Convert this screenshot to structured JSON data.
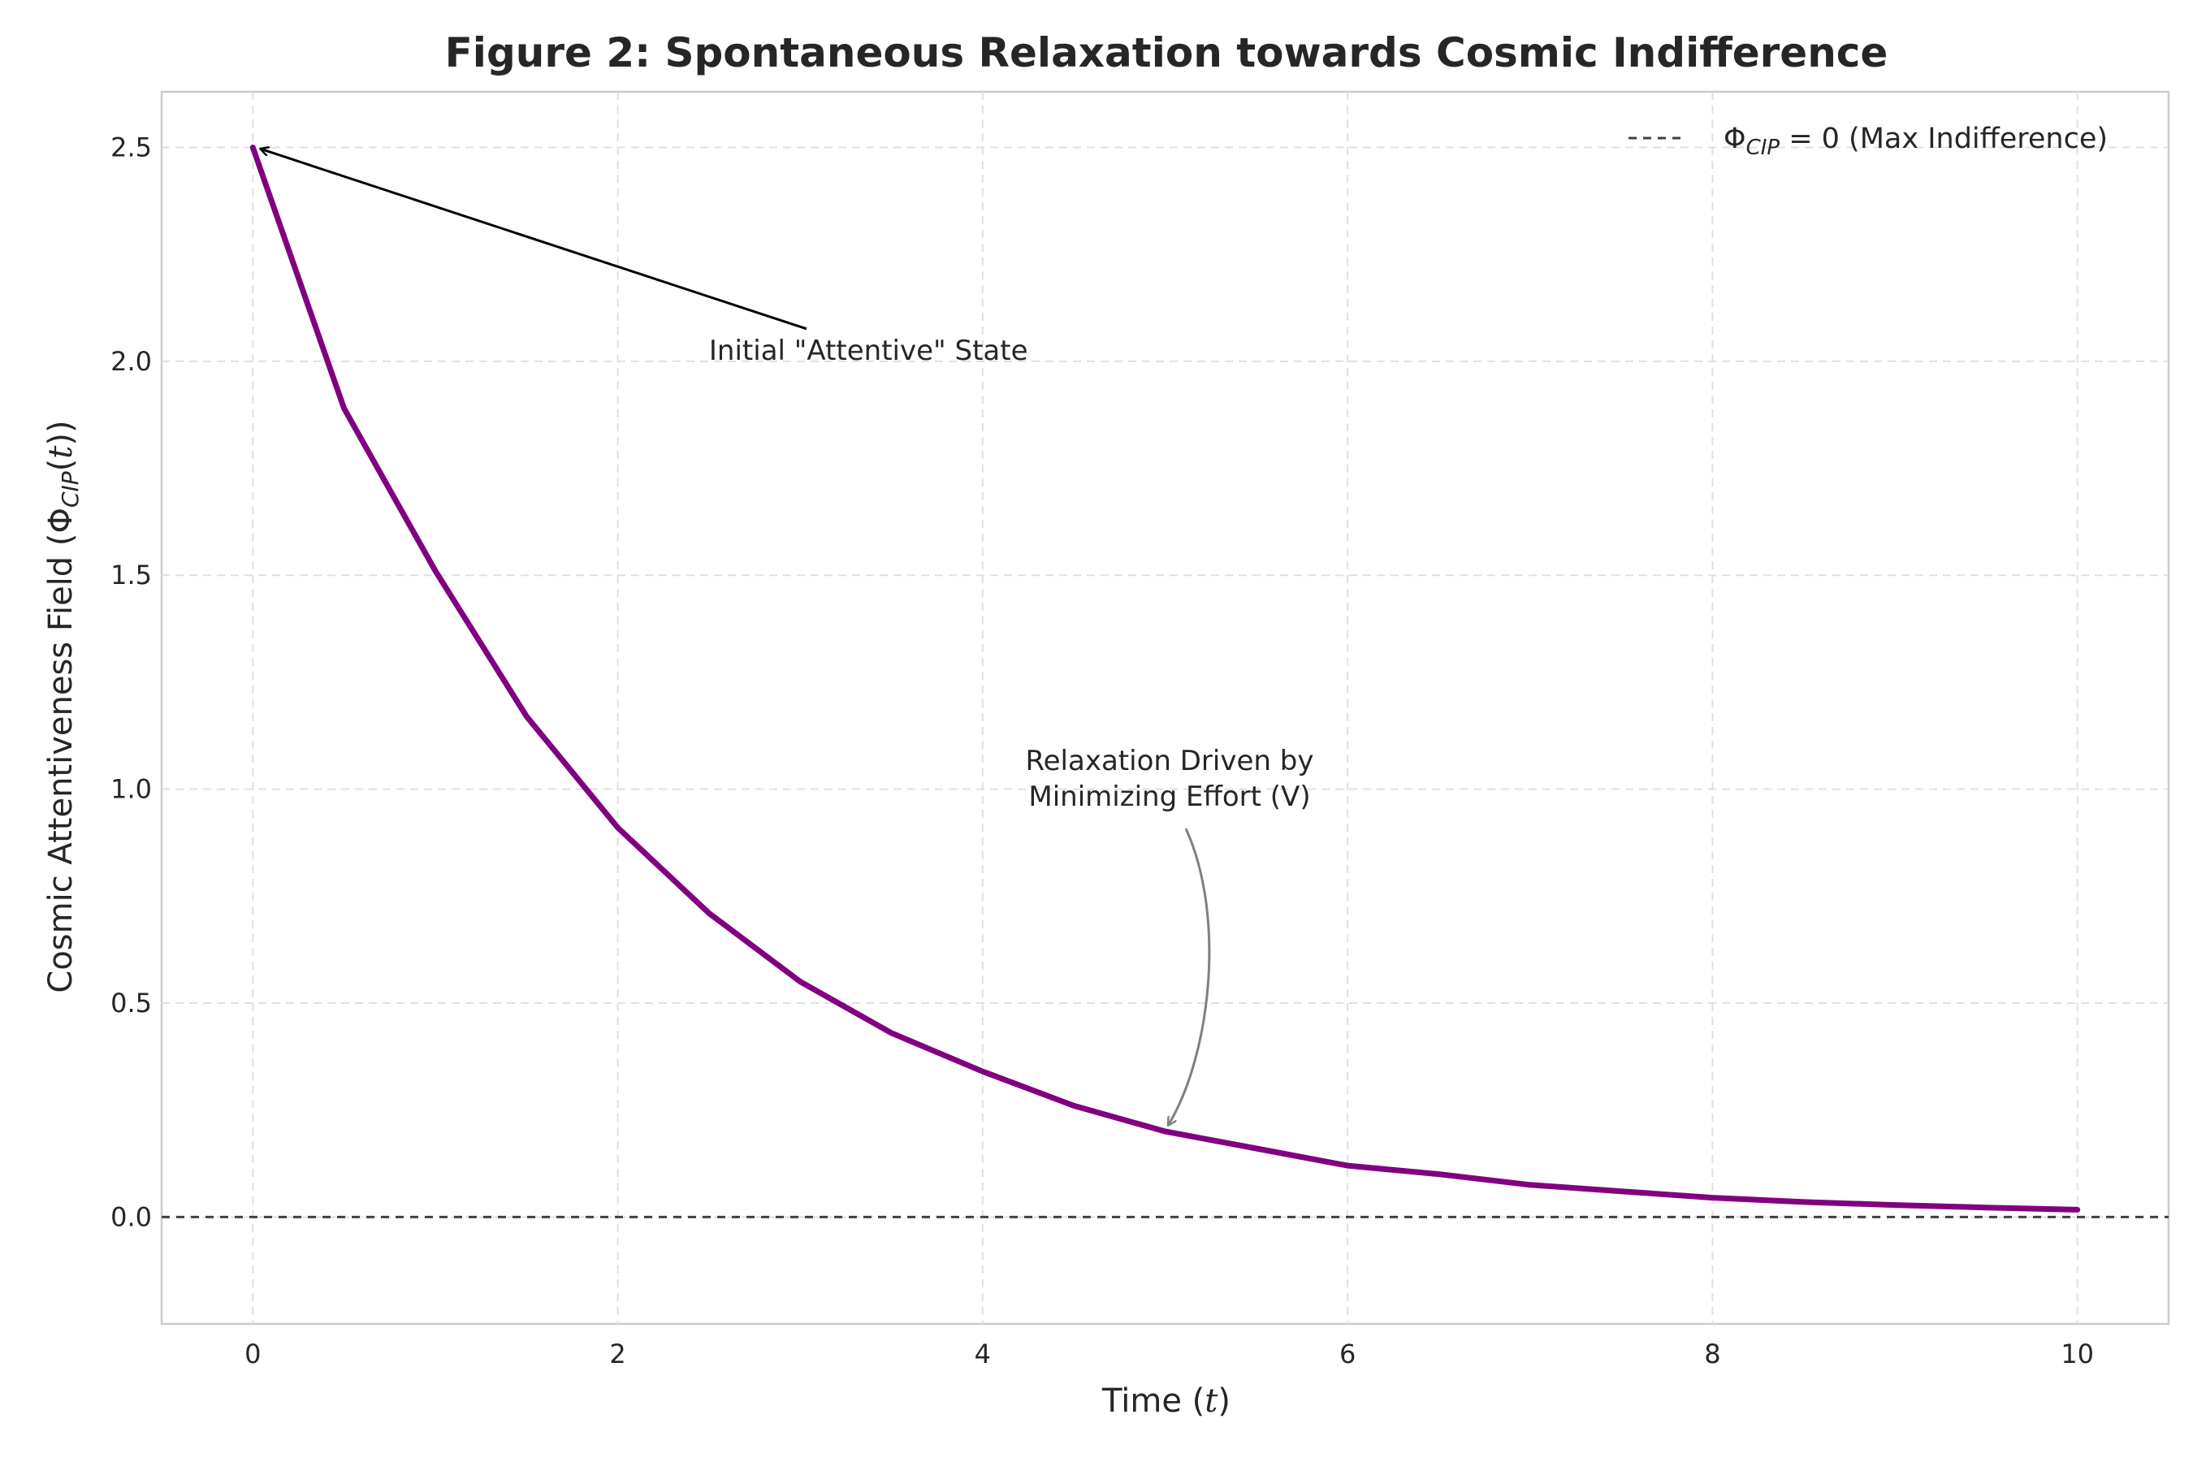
{
  "chart_data": {
    "type": "line",
    "title": "Figure 2: Spontaneous Relaxation towards Cosmic Indifference",
    "xlabel": "Time (t)",
    "ylabel": "Cosmic Attentiveness Field (ΦCIP(t))",
    "xlim": [
      -0.5,
      10.5
    ],
    "ylim": [
      -0.25,
      2.63
    ],
    "xticks": [
      0,
      2,
      4,
      6,
      8,
      10
    ],
    "xtick_labels": [
      "0",
      "2",
      "4",
      "6",
      "8",
      "10"
    ],
    "yticks": [
      0.0,
      0.5,
      1.0,
      1.5,
      2.0,
      2.5
    ],
    "ytick_labels": [
      "0.0",
      "0.5",
      "1.0",
      "1.5",
      "2.0",
      "2.5"
    ],
    "grid": true,
    "legend_position": "top-right",
    "series": [
      {
        "type": "line",
        "color": "#800080",
        "x": [
          0,
          0.5,
          1,
          1.5,
          2,
          2.5,
          3,
          3.5,
          4,
          4.5,
          5,
          5.5,
          6,
          6.5,
          7,
          7.5,
          8,
          8.5,
          9,
          9.5,
          10
        ],
        "y": [
          2.5,
          1.89,
          1.51,
          1.17,
          0.91,
          0.71,
          0.55,
          0.43,
          0.34,
          0.26,
          0.2,
          0.16,
          0.12,
          0.1,
          0.075,
          0.06,
          0.045,
          0.035,
          0.028,
          0.022,
          0.017
        ]
      },
      {
        "name": "ΦCIP = 0 (Max Indifference)",
        "type": "hline",
        "y": 0,
        "color": "#404040",
        "style": "dashed"
      }
    ],
    "annotations": [
      {
        "text": "Initial \"Attentive\" State",
        "text_x": 2.5,
        "text_y": 2.0,
        "point_x": 0.0,
        "point_y": 2.5
      },
      {
        "text_lines": [
          "Relaxation Driven by",
          "Minimizing Effort (V)"
        ],
        "point_x": 5.0,
        "point_y": 0.2
      }
    ]
  }
}
